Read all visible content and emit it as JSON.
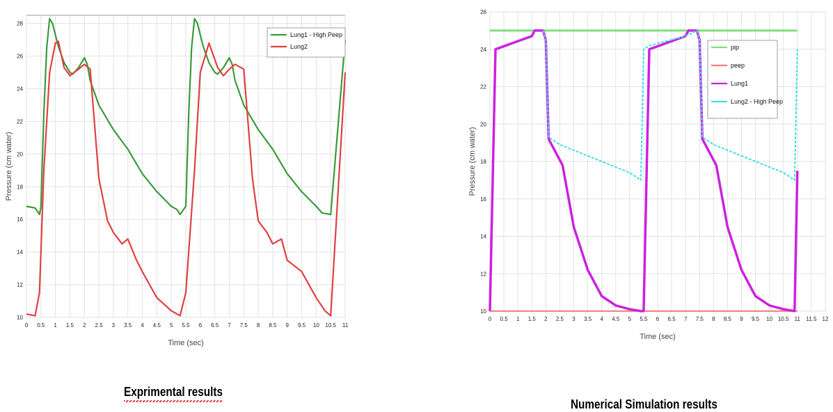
{
  "chart_data": [
    {
      "type": "line",
      "title": "",
      "xlabel": "Time (sec)",
      "ylabel": "Pressure (cm water)",
      "xlim": [
        0,
        11
      ],
      "ylim": [
        10,
        28.5
      ],
      "xticks": [
        "0",
        "0.5",
        "1",
        "1.5",
        "2",
        "2.5",
        "3",
        "3.5",
        "4",
        "4.5",
        "5",
        "5.5",
        "6",
        "6.5",
        "7",
        "7.5",
        "8",
        "8.5",
        "9",
        "9.5",
        "10",
        "10.5",
        "11"
      ],
      "yticks": [
        "10",
        "12",
        "14",
        "16",
        "18",
        "20",
        "22",
        "24",
        "26",
        "28"
      ],
      "grid": true,
      "legend_position": "top-right",
      "caption": "Exprimental results",
      "series": [
        {
          "name": "Lung1 - High Peep",
          "color": "#3a9a3a",
          "x": [
            0,
            0.3,
            0.45,
            0.5,
            0.6,
            0.7,
            0.8,
            0.9,
            1.0,
            1.1,
            1.3,
            1.5,
            1.6,
            1.8,
            2.0,
            2.1,
            2.2,
            2.5,
            3.0,
            3.5,
            4.0,
            4.5,
            5.0,
            5.2,
            5.3,
            5.5,
            5.6,
            5.7,
            5.8,
            5.9,
            6.0,
            6.1,
            6.3,
            6.5,
            6.6,
            6.8,
            7.0,
            7.1,
            7.2,
            7.5,
            8.0,
            8.5,
            9.0,
            9.5,
            10.0,
            10.2,
            10.5,
            11.0
          ],
          "y": [
            16.8,
            16.7,
            16.3,
            16.8,
            22.5,
            26.5,
            28.3,
            28.0,
            27.3,
            26.6,
            25.6,
            25.0,
            24.9,
            25.3,
            25.9,
            25.5,
            24.5,
            23.0,
            21.5,
            20.3,
            18.8,
            17.7,
            16.8,
            16.6,
            16.3,
            16.8,
            22.5,
            26.5,
            28.3,
            28.0,
            27.3,
            26.6,
            25.6,
            25.0,
            24.9,
            25.3,
            25.9,
            25.5,
            24.5,
            23.0,
            21.5,
            20.3,
            18.8,
            17.7,
            16.8,
            16.4,
            16.3,
            27.0
          ]
        },
        {
          "name": "Lung2",
          "color": "#e04040",
          "x": [
            0,
            0.3,
            0.45,
            0.6,
            0.8,
            1.0,
            1.1,
            1.3,
            1.5,
            1.8,
            2.0,
            2.2,
            2.5,
            2.8,
            3.0,
            3.3,
            3.5,
            3.8,
            4.0,
            4.5,
            5.0,
            5.3,
            5.5,
            5.8,
            6.0,
            6.3,
            6.6,
            6.8,
            7.0,
            7.2,
            7.5,
            7.8,
            8.0,
            8.3,
            8.5,
            8.8,
            9.0,
            9.5,
            10.0,
            10.3,
            10.5,
            11.0
          ],
          "y": [
            10.2,
            10.1,
            11.5,
            19.0,
            25.0,
            26.8,
            26.9,
            25.3,
            24.8,
            25.2,
            25.5,
            25.2,
            18.5,
            15.9,
            15.2,
            14.5,
            14.8,
            13.5,
            12.8,
            11.2,
            10.4,
            10.1,
            11.5,
            19.0,
            25.0,
            26.8,
            25.3,
            24.8,
            25.2,
            25.5,
            25.2,
            18.5,
            15.9,
            15.2,
            14.5,
            14.8,
            13.5,
            12.8,
            11.2,
            10.4,
            10.1,
            25.0
          ]
        }
      ]
    },
    {
      "type": "line",
      "title": "",
      "xlabel": "Time (sec)",
      "ylabel": "Pressure (cm water)",
      "xlim": [
        0,
        12
      ],
      "ylim": [
        10,
        26
      ],
      "xticks": [
        "0",
        "0.5",
        "1",
        "1.5",
        "2",
        "2.5",
        "3",
        "3.5",
        "4",
        "4.5",
        "5",
        "5.5",
        "6",
        "6.5",
        "7",
        "7.5",
        "8",
        "8.5",
        "9",
        "9.5",
        "10",
        "10.5",
        "11",
        "11.5",
        "12"
      ],
      "yticks": [
        "10",
        "12",
        "14",
        "16",
        "18",
        "20",
        "22",
        "24",
        "26"
      ],
      "grid": true,
      "legend_position": "top-right",
      "caption": "Numerical Simulation results",
      "series": [
        {
          "name": "pip",
          "color": "#7de07d",
          "x": [
            0,
            11.0
          ],
          "y": [
            25,
            25
          ]
        },
        {
          "name": "peep",
          "color": "#f08080",
          "x": [
            0,
            11.0
          ],
          "y": [
            10,
            10
          ]
        },
        {
          "name": "Lung1",
          "color": "#cc22dd",
          "x": [
            0,
            0.2,
            1.5,
            1.6,
            1.9,
            2.0,
            2.1,
            2.6,
            3.0,
            3.5,
            4.0,
            4.5,
            5.0,
            5.4,
            5.5,
            5.7,
            7.0,
            7.1,
            7.4,
            7.5,
            7.6,
            8.1,
            8.5,
            9.0,
            9.5,
            10.0,
            10.5,
            10.9,
            11.0
          ],
          "y": [
            10,
            24,
            24.7,
            25.0,
            25.0,
            24.5,
            19.2,
            17.8,
            14.5,
            12.2,
            10.8,
            10.3,
            10.1,
            10.0,
            10.0,
            24.0,
            24.7,
            25.0,
            25.0,
            24.5,
            19.2,
            17.8,
            14.5,
            12.2,
            10.8,
            10.3,
            10.1,
            10.0,
            17.5
          ]
        },
        {
          "name": "Lung2 - High Peep",
          "color": "#40e0e8",
          "x": [
            1.9,
            2.0,
            2.1,
            2.5,
            3.0,
            3.5,
            4.0,
            4.5,
            5.0,
            5.4,
            5.5,
            5.7,
            7.0,
            7.4,
            7.5,
            7.6,
            8.0,
            8.5,
            9.0,
            9.5,
            10.0,
            10.5,
            10.9,
            11.0
          ],
          "y": [
            25.0,
            24.5,
            19.3,
            18.9,
            18.6,
            18.3,
            18.0,
            17.7,
            17.4,
            17.0,
            24.0,
            24.2,
            24.7,
            25.0,
            24.5,
            19.3,
            18.9,
            18.6,
            18.3,
            18.0,
            17.7,
            17.4,
            17.0,
            24.0
          ]
        }
      ]
    }
  ]
}
